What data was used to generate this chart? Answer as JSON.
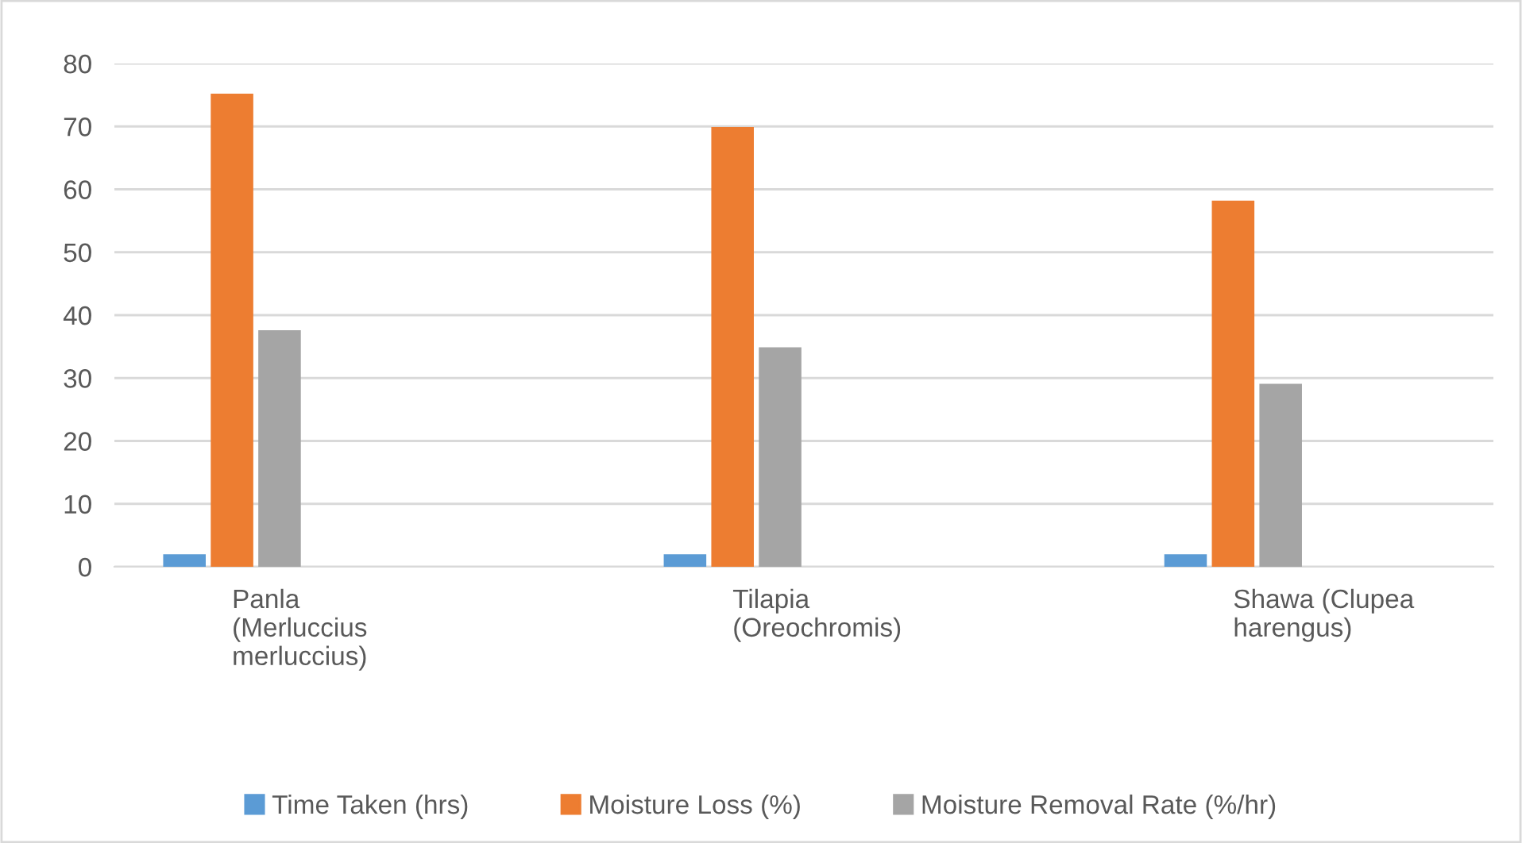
{
  "chart_data": {
    "type": "bar",
    "categories": [
      "Panla\n(Merluccius\nmerluccius)",
      "Tilapia\n(Oreochromis)",
      "Shawa (Clupea\nharengus)"
    ],
    "series": [
      {
        "name": "Time Taken (hrs)",
        "color": "#5b9bd5",
        "values": [
          2,
          2,
          2
        ]
      },
      {
        "name": "Moisture Loss (%)",
        "color": "#ed7d31",
        "values": [
          75.2,
          69.9,
          58.2
        ]
      },
      {
        "name": "Moisture Removal Rate (%/hr)",
        "color": "#a5a5a5",
        "values": [
          37.6,
          34.9,
          29.1
        ]
      }
    ],
    "ylim": [
      0,
      80
    ],
    "yticks": [
      0,
      10,
      20,
      30,
      40,
      50,
      60,
      70,
      80
    ],
    "grid": "y",
    "legend": "bottom"
  }
}
